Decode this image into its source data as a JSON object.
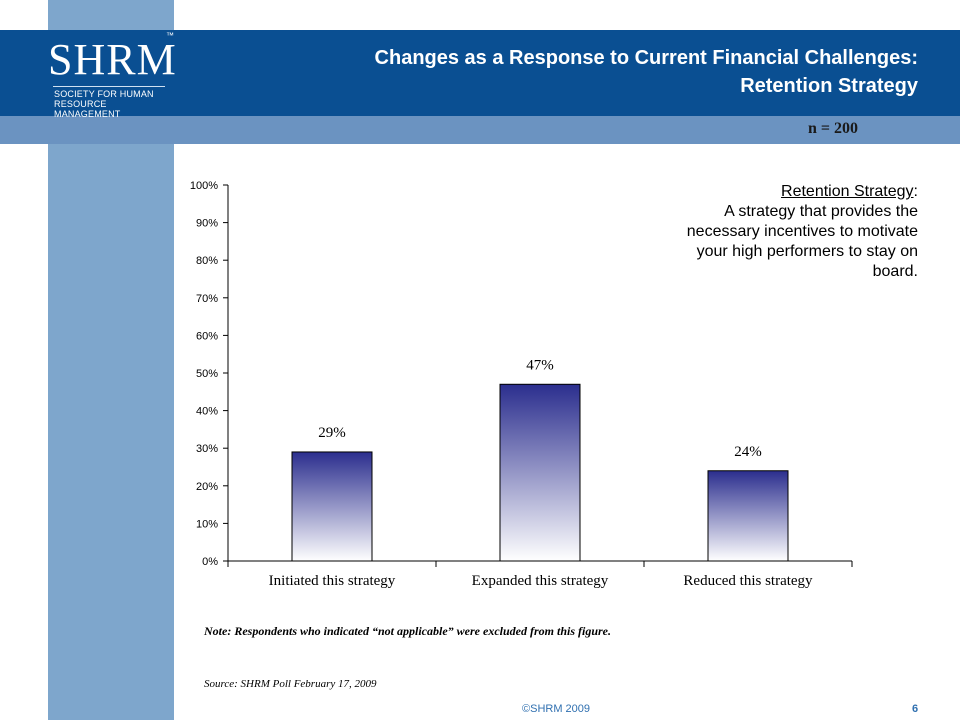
{
  "logo": {
    "mark": "SHRM",
    "tm": "™",
    "line1": "SOCIETY FOR HUMAN",
    "line2": "RESOURCE MANAGEMENT"
  },
  "header": {
    "title_line1": "Changes as a Response to Current Financial Challenges:",
    "title_line2": "Retention Strategy",
    "n_value": "n = 200"
  },
  "definition": {
    "term": "Retention Strategy",
    "line1": "A strategy that provides the",
    "line2": "necessary incentives to motivate",
    "line3": "your high performers to stay on",
    "line4": "board."
  },
  "chart_data": {
    "type": "bar",
    "categories": [
      "Initiated this strategy",
      "Expanded this strategy",
      "Reduced this strategy"
    ],
    "values": [
      29,
      47,
      24
    ],
    "data_labels": [
      "29%",
      "47%",
      "24%"
    ],
    "y_ticks": [
      "0%",
      "10%",
      "20%",
      "30%",
      "40%",
      "50%",
      "60%",
      "70%",
      "80%",
      "90%",
      "100%"
    ],
    "ylim": [
      0,
      100
    ],
    "bar_gradient": [
      "#2b2e8e",
      "#ffffff"
    ],
    "grid": false,
    "legend": "none"
  },
  "footer": {
    "note": "Note: Respondents who indicated “not applicable” were excluded from this figure.",
    "source": "Source: SHRM Poll February 17, 2009",
    "copyright": "©SHRM 2009",
    "page": "6"
  },
  "colors": {
    "header_bg": "#0a4f92",
    "subband_bg": "#6b93c1",
    "left_strip": "#7ea6cc"
  }
}
